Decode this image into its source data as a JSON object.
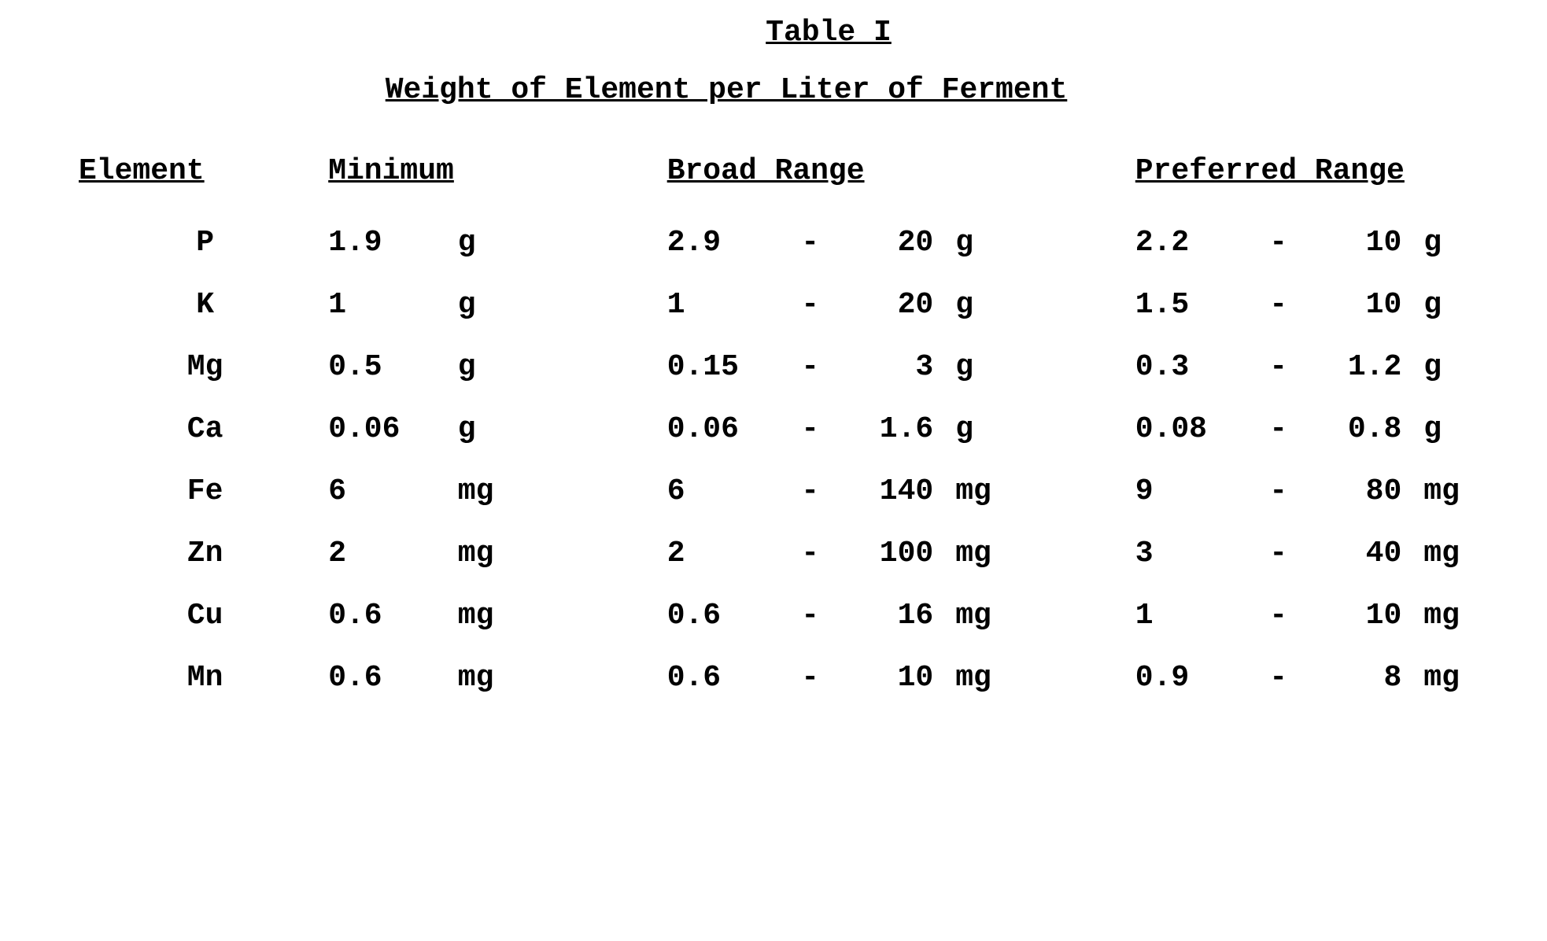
{
  "title": "Table I",
  "subtitle": "Weight of Element per Liter of Ferment",
  "columns": {
    "element": "Element",
    "minimum": "Minimum",
    "broad_range": "Broad Range",
    "preferred_range": "Preferred Range"
  },
  "rows": [
    {
      "element": "P",
      "min_val": "1.9",
      "min_unit": "g",
      "br_low": "2.9",
      "br_high": "20",
      "br_unit": "g",
      "pr_low": "2.2",
      "pr_high": "10",
      "pr_unit": "g"
    },
    {
      "element": "K",
      "min_val": "1",
      "min_unit": "g",
      "br_low": "1",
      "br_high": "20",
      "br_unit": "g",
      "pr_low": "1.5",
      "pr_high": "10",
      "pr_unit": "g"
    },
    {
      "element": "Mg",
      "min_val": "0.5",
      "min_unit": "g",
      "br_low": "0.15",
      "br_high": "3",
      "br_unit": "g",
      "pr_low": "0.3",
      "pr_high": "1.2",
      "pr_unit": "g"
    },
    {
      "element": "Ca",
      "min_val": "0.06",
      "min_unit": "g",
      "br_low": "0.06",
      "br_high": "1.6",
      "br_unit": "g",
      "pr_low": "0.08",
      "pr_high": "0.8",
      "pr_unit": "g"
    },
    {
      "element": "Fe",
      "min_val": "6",
      "min_unit": "mg",
      "br_low": "6",
      "br_high": "140",
      "br_unit": "mg",
      "pr_low": "9",
      "pr_high": "80",
      "pr_unit": "mg"
    },
    {
      "element": "Zn",
      "min_val": "2",
      "min_unit": "mg",
      "br_low": "2",
      "br_high": "100",
      "br_unit": "mg",
      "pr_low": "3",
      "pr_high": "40",
      "pr_unit": "mg"
    },
    {
      "element": "Cu",
      "min_val": "0.6",
      "min_unit": "mg",
      "br_low": "0.6",
      "br_high": "16",
      "br_unit": "mg",
      "pr_low": "1",
      "pr_high": "10",
      "pr_unit": "mg"
    },
    {
      "element": "Mn",
      "min_val": "0.6",
      "min_unit": "mg",
      "br_low": "0.6",
      "br_high": "10",
      "br_unit": "mg",
      "pr_low": "0.9",
      "pr_high": "8",
      "pr_unit": "mg"
    }
  ],
  "dash": "-",
  "style": {
    "font_family": "Courier New",
    "font_weight": "bold",
    "font_size_pt": 28,
    "text_color": "#000000",
    "background_color": "#ffffff",
    "underline_headers": true
  }
}
